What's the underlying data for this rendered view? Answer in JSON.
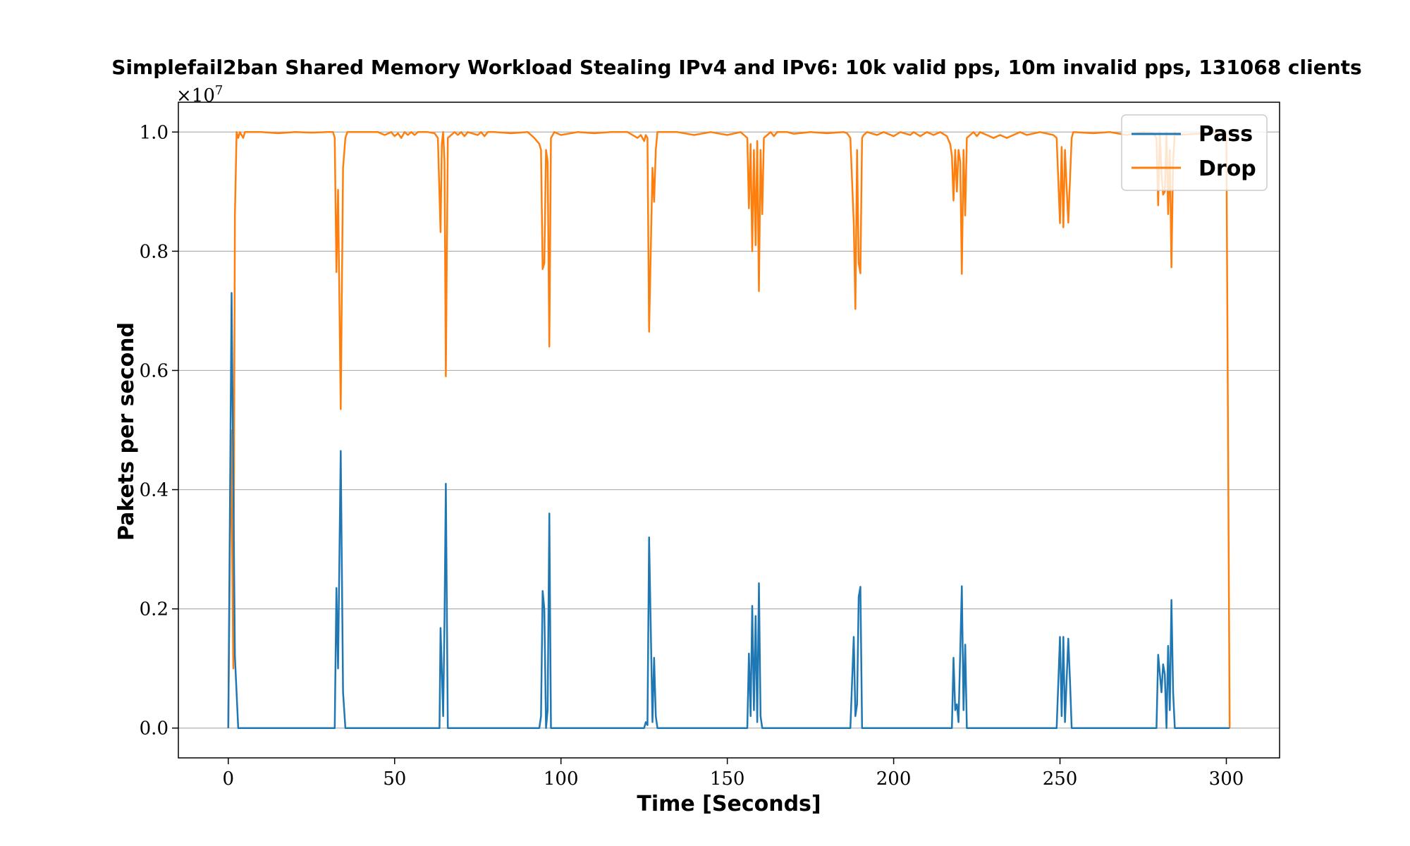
{
  "chart_data": {
    "type": "line",
    "title": "Simplefail2ban Shared Memory Workload Stealing IPv4 and IPv6: 10k valid pps, 10m invalid pps, 131068 clients",
    "xlabel": "Time [Seconds]",
    "ylabel": "Pakets per second",
    "y_multiplier": "×10",
    "y_multiplier_exp": "7",
    "xlim": [
      -15,
      316
    ],
    "ylim": [
      -0.05,
      1.05
    ],
    "xticks": [
      0,
      50,
      100,
      150,
      200,
      250,
      300
    ],
    "xtick_labels": [
      "0",
      "50",
      "100",
      "150",
      "200",
      "250",
      "300"
    ],
    "yticks": [
      0.0,
      0.2,
      0.4,
      0.6,
      0.8,
      1.0
    ],
    "ytick_labels": [
      "0.0",
      "0.2",
      "0.4",
      "0.6",
      "0.8",
      "1.0"
    ],
    "grid": "horizontal",
    "legend_position": "top-right",
    "series": [
      {
        "name": "Pass",
        "color": "#1f77b4",
        "points": [
          [
            0,
            0
          ],
          [
            1,
            0.73
          ],
          [
            2,
            0.12
          ],
          [
            3,
            0
          ],
          [
            32,
            0
          ],
          [
            32.5,
            0.235
          ],
          [
            33,
            0.1
          ],
          [
            33.8,
            0.465
          ],
          [
            34.5,
            0.06
          ],
          [
            35.2,
            0
          ],
          [
            63.5,
            0
          ],
          [
            63.8,
            0.168
          ],
          [
            64.6,
            0.02
          ],
          [
            65,
            0.18
          ],
          [
            65.4,
            0.41
          ],
          [
            66,
            0
          ],
          [
            93.5,
            0
          ],
          [
            94,
            0.02
          ],
          [
            94.5,
            0.23
          ],
          [
            95,
            0.2
          ],
          [
            95.5,
            0
          ],
          [
            96,
            0.03
          ],
          [
            96.5,
            0.36
          ],
          [
            97,
            0
          ],
          [
            125,
            0
          ],
          [
            125.5,
            0.01
          ],
          [
            126,
            0.005
          ],
          [
            126.5,
            0.32
          ],
          [
            127.5,
            0.01
          ],
          [
            128,
            0.118
          ],
          [
            128.5,
            0.02
          ],
          [
            129,
            0
          ],
          [
            156,
            0
          ],
          [
            156.5,
            0.125
          ],
          [
            157,
            0.02
          ],
          [
            157.5,
            0.205
          ],
          [
            158,
            0.03
          ],
          [
            158.5,
            0.188
          ],
          [
            159,
            0.01
          ],
          [
            159.5,
            0.243
          ],
          [
            160,
            0.02
          ],
          [
            160.5,
            0
          ],
          [
            187,
            0
          ],
          [
            188,
            0.153
          ],
          [
            188.5,
            0.02
          ],
          [
            189,
            0.04
          ],
          [
            189.5,
            0.22
          ],
          [
            190,
            0.237
          ],
          [
            190.5,
            0
          ],
          [
            217.5,
            0
          ],
          [
            218,
            0.118
          ],
          [
            218.5,
            0.03
          ],
          [
            219,
            0.04
          ],
          [
            219.5,
            0.01
          ],
          [
            220.5,
            0.238
          ],
          [
            221,
            0.03
          ],
          [
            221.5,
            0.14
          ],
          [
            222,
            0
          ],
          [
            249,
            0
          ],
          [
            250,
            0.153
          ],
          [
            250.5,
            0.02
          ],
          [
            251,
            0.153
          ],
          [
            251.5,
            0.01
          ],
          [
            252.5,
            0.15
          ],
          [
            253,
            0.08
          ],
          [
            253.5,
            0
          ],
          [
            279,
            0
          ],
          [
            279.5,
            0.123
          ],
          [
            280.5,
            0.06
          ],
          [
            281,
            0.107
          ],
          [
            281.5,
            0.09
          ],
          [
            282,
            0
          ],
          [
            282.5,
            0.138
          ],
          [
            283,
            0.03
          ],
          [
            283.5,
            0.215
          ],
          [
            284,
            0.06
          ],
          [
            284.5,
            0
          ],
          [
            301,
            0
          ]
        ]
      },
      {
        "name": "Drop",
        "color": "#ff7f0e",
        "points": [
          [
            0,
            0
          ],
          [
            0.8,
            0.5
          ],
          [
            1.5,
            0.1
          ],
          [
            2,
            0.86
          ],
          [
            2.5,
            1.0
          ],
          [
            3,
            0.99
          ],
          [
            3.5,
            1.0
          ],
          [
            4.5,
            0.99
          ],
          [
            5,
            1.0
          ],
          [
            10,
            1.0
          ],
          [
            15,
            0.998
          ],
          [
            20,
            1.0
          ],
          [
            25,
            0.999
          ],
          [
            30,
            1.0
          ],
          [
            31.5,
            1.0
          ],
          [
            32,
            0.99
          ],
          [
            32.5,
            0.765
          ],
          [
            33,
            0.903
          ],
          [
            33.8,
            0.535
          ],
          [
            34.5,
            0.94
          ],
          [
            35.2,
            0.99
          ],
          [
            35.8,
            1.0
          ],
          [
            45,
            1.0
          ],
          [
            47,
            0.995
          ],
          [
            49,
            1.0
          ],
          [
            50,
            0.993
          ],
          [
            51,
            0.998
          ],
          [
            52,
            0.99
          ],
          [
            53,
            1.0
          ],
          [
            54,
            0.995
          ],
          [
            55,
            1.0
          ],
          [
            56,
            0.995
          ],
          [
            57,
            1.0
          ],
          [
            60,
            1.0
          ],
          [
            62,
            0.998
          ],
          [
            63,
            0.99
          ],
          [
            63.8,
            0.832
          ],
          [
            64.2,
            0.98
          ],
          [
            64.6,
            1.0
          ],
          [
            65,
            0.95
          ],
          [
            65.4,
            0.59
          ],
          [
            66,
            0.99
          ],
          [
            67,
            0.995
          ],
          [
            68,
            1.0
          ],
          [
            69,
            0.995
          ],
          [
            70,
            1.0
          ],
          [
            71,
            0.993
          ],
          [
            72,
            1.0
          ],
          [
            75,
            0.995
          ],
          [
            76,
            1.0
          ],
          [
            77,
            0.993
          ],
          [
            78,
            1.0
          ],
          [
            80,
            1.0
          ],
          [
            85,
            0.998
          ],
          [
            90,
            1.0
          ],
          [
            92,
            0.99
          ],
          [
            93.5,
            0.98
          ],
          [
            94,
            0.97
          ],
          [
            94.5,
            0.77
          ],
          [
            95,
            0.78
          ],
          [
            95.5,
            0.97
          ],
          [
            96,
            0.95
          ],
          [
            96.5,
            0.64
          ],
          [
            97,
            0.99
          ],
          [
            98,
            1.0
          ],
          [
            100,
            0.995
          ],
          [
            105,
            1.0
          ],
          [
            110,
            0.998
          ],
          [
            115,
            1.0
          ],
          [
            120,
            1.0
          ],
          [
            123,
            0.99
          ],
          [
            124,
            0.995
          ],
          [
            125,
            0.985
          ],
          [
            125.5,
            0.995
          ],
          [
            126,
            0.99
          ],
          [
            126.5,
            0.665
          ],
          [
            127.5,
            0.94
          ],
          [
            128,
            0.883
          ],
          [
            128.5,
            0.97
          ],
          [
            129,
            1.0
          ],
          [
            135,
            1.0
          ],
          [
            140,
            0.995
          ],
          [
            145,
            1.0
          ],
          [
            150,
            0.995
          ],
          [
            154,
            1.0
          ],
          [
            155,
            0.995
          ],
          [
            156,
            0.99
          ],
          [
            156.5,
            0.872
          ],
          [
            157,
            0.98
          ],
          [
            157.5,
            0.8
          ],
          [
            158,
            0.97
          ],
          [
            158.5,
            0.81
          ],
          [
            159,
            0.985
          ],
          [
            159.5,
            0.733
          ],
          [
            160,
            0.97
          ],
          [
            160.5,
            0.862
          ],
          [
            161,
            0.99
          ],
          [
            162,
            0.995
          ],
          [
            163,
            1.0
          ],
          [
            164,
            0.993
          ],
          [
            165,
            1.0
          ],
          [
            168,
            1.0
          ],
          [
            170,
            0.997
          ],
          [
            175,
            1.0
          ],
          [
            180,
            0.998
          ],
          [
            185,
            1.0
          ],
          [
            186,
            0.998
          ],
          [
            187,
            0.99
          ],
          [
            188,
            0.847
          ],
          [
            188.5,
            0.703
          ],
          [
            189,
            0.97
          ],
          [
            189.5,
            0.78
          ],
          [
            190,
            0.763
          ],
          [
            190.5,
            0.99
          ],
          [
            191,
            0.995
          ],
          [
            192,
            1.0
          ],
          [
            195,
            0.995
          ],
          [
            197,
            1.0
          ],
          [
            200,
            0.993
          ],
          [
            202,
            1.0
          ],
          [
            205,
            0.995
          ],
          [
            206,
            1.0
          ],
          [
            208,
            0.993
          ],
          [
            210,
            1.0
          ],
          [
            212,
            0.995
          ],
          [
            214,
            1.0
          ],
          [
            216,
            0.993
          ],
          [
            217,
            0.98
          ],
          [
            217.5,
            0.96
          ],
          [
            218,
            0.885
          ],
          [
            218.5,
            0.97
          ],
          [
            219,
            0.9
          ],
          [
            219.5,
            0.97
          ],
          [
            220,
            0.95
          ],
          [
            220.5,
            0.762
          ],
          [
            221,
            0.97
          ],
          [
            221.5,
            0.86
          ],
          [
            222,
            0.99
          ],
          [
            223,
            0.995
          ],
          [
            224,
            1.0
          ],
          [
            225,
            0.993
          ],
          [
            226,
            1.0
          ],
          [
            228,
            0.995
          ],
          [
            230,
            0.99
          ],
          [
            232,
            0.995
          ],
          [
            234,
            0.99
          ],
          [
            236,
            0.995
          ],
          [
            238,
            1.0
          ],
          [
            240,
            0.995
          ],
          [
            244,
            1.0
          ],
          [
            248,
            0.995
          ],
          [
            249,
            0.99
          ],
          [
            250,
            0.847
          ],
          [
            250.5,
            0.975
          ],
          [
            251,
            0.84
          ],
          [
            251.5,
            0.97
          ],
          [
            252.5,
            0.848
          ],
          [
            253,
            0.92
          ],
          [
            253.5,
            0.99
          ],
          [
            254,
            1.0
          ],
          [
            260,
            0.998
          ],
          [
            265,
            1.0
          ],
          [
            270,
            0.995
          ],
          [
            275,
            1.0
          ],
          [
            278,
            0.998
          ],
          [
            279,
            0.99
          ],
          [
            279.5,
            0.877
          ],
          [
            280,
            1.0
          ],
          [
            280.5,
            0.93
          ],
          [
            281,
            0.895
          ],
          [
            281.5,
            0.9
          ],
          [
            282,
            1.0
          ],
          [
            282.5,
            0.862
          ],
          [
            283,
            0.97
          ],
          [
            283.5,
            0.773
          ],
          [
            284,
            0.95
          ],
          [
            284.5,
            1.0
          ],
          [
            285,
            0.995
          ],
          [
            300,
            1.0
          ],
          [
            301,
            0
          ]
        ]
      }
    ]
  }
}
